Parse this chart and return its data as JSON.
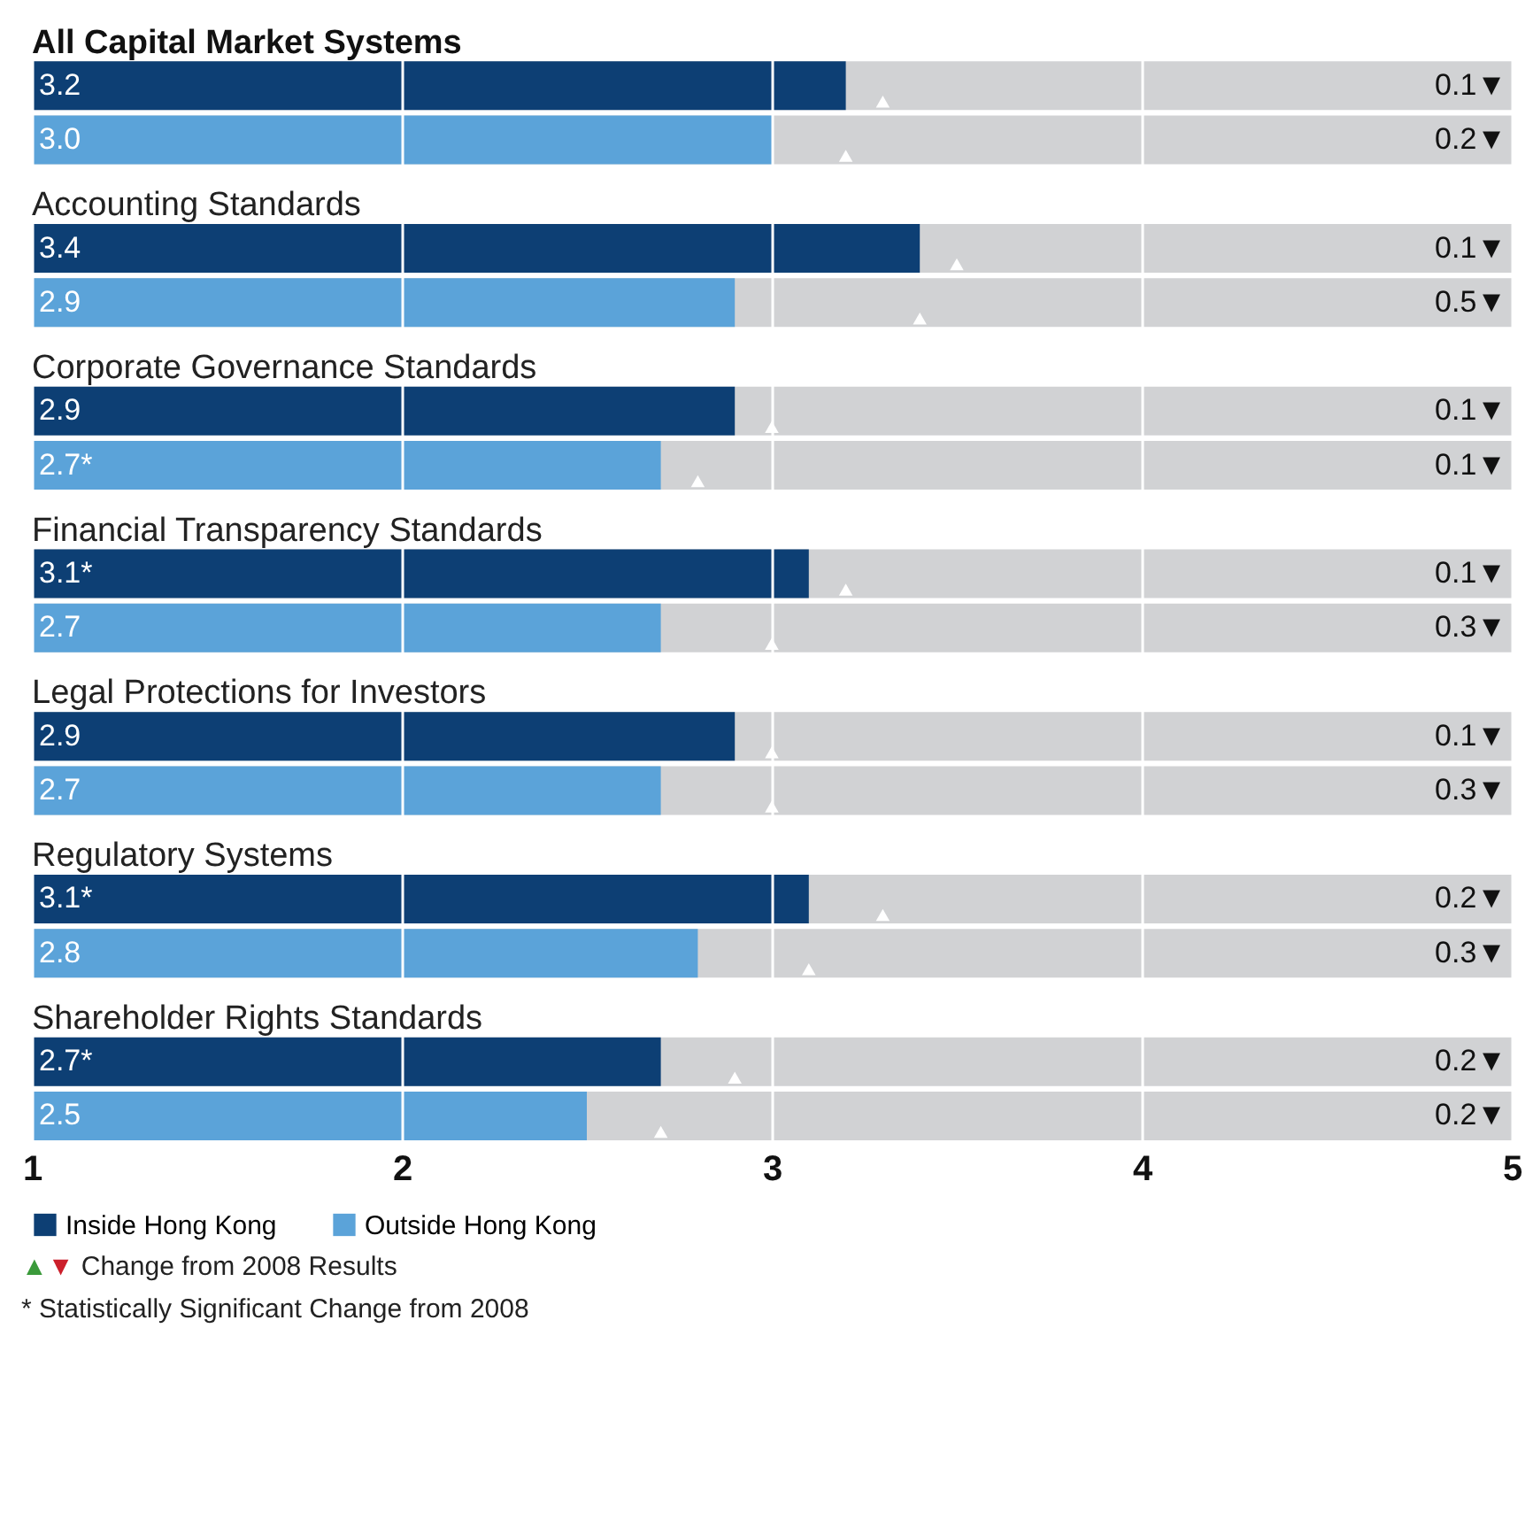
{
  "chart_data": {
    "type": "bar",
    "orientation": "horizontal",
    "categories": [
      "All Capital Market Systems",
      "Accounting Standards",
      "Corporate Governance Standards",
      "Financial Transparency Standards",
      "Legal Protections for Investors",
      "Regulatory Systems",
      "Shareholder Rights Standards"
    ],
    "series": [
      {
        "name": "Inside Hong Kong",
        "color": "#0d3f74",
        "values": [
          3.2,
          3.4,
          2.9,
          3.1,
          2.9,
          3.1,
          2.7
        ],
        "value_labels": [
          "3.2",
          "3.4",
          "2.9",
          "3.1*",
          "2.9",
          "3.1*",
          "2.7*"
        ]
      },
      {
        "name": "Outside Hong Kong",
        "color": "#5ba3d9",
        "values": [
          3.0,
          2.9,
          2.7,
          2.7,
          2.7,
          2.8,
          2.5
        ],
        "value_labels": [
          "3.0",
          "2.9",
          "2.7*",
          "2.7",
          "2.7",
          "2.8",
          "2.5"
        ]
      },
      {
        "type": "scatter",
        "marker": "triangle",
        "color": "#ffffff",
        "values": [
          3.3,
          3.5,
          3.0,
          3.2,
          3.0,
          3.3,
          2.9
        ]
      },
      {
        "type": "scatter",
        "marker": "triangle",
        "color": "#ffffff",
        "values": [
          3.2,
          3.4,
          2.8,
          3.0,
          3.0,
          3.1,
          2.7
        ]
      }
    ],
    "xlim": [
      1,
      5
    ],
    "xticks": [
      1,
      2,
      3,
      4,
      5
    ],
    "grid": true,
    "legend": "bottom left",
    "annotations": [
      "0.1▼",
      "0.2▼",
      "0.1▼",
      "0.5▼",
      "0.1▼",
      "0.1▼",
      "0.1▼",
      "0.3▼",
      "0.1▼",
      "0.3▼",
      "0.2▼",
      "0.3▼",
      "0.2▼",
      "0.2▼",
      "▲▼ Change from 2008 Results",
      "* Statistically Significant Change from 2008"
    ]
  }
}
